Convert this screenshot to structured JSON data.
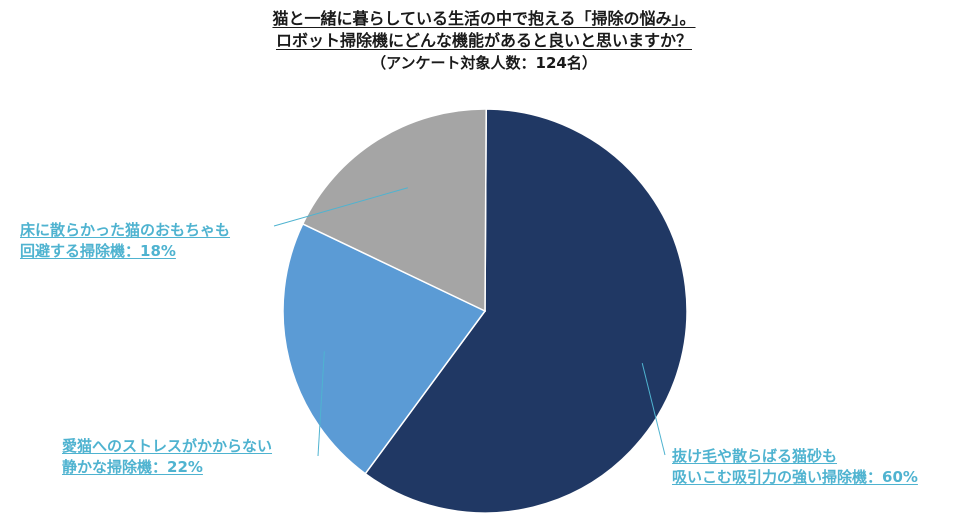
{
  "chart_data": {
    "type": "pie",
    "title_lines": [
      "猫と一緒に暮らしている生活の中で抱える「掃除の悩み」。",
      "ロボット掃除機にどんな機能があると良いと思いますか？"
    ],
    "subtitle": "（アンケート対象人数：124名）",
    "slices": [
      {
        "label_lines": [
          "抜け毛や散らばる猫砂も",
          "吸いこむ吸引力の強い掃除機：60%"
        ],
        "value": 60,
        "color": "#203864"
      },
      {
        "label_lines": [
          "愛猫へのストレスがかからない",
          "静かな掃除機：22%"
        ],
        "value": 22,
        "color": "#5b9bd5"
      },
      {
        "label_lines": [
          "床に散らかった猫のおもちゃも",
          "回避する掃除機：18%"
        ],
        "value": 18,
        "color": "#a5a5a5"
      }
    ],
    "label_color": "#4fb3d0"
  }
}
